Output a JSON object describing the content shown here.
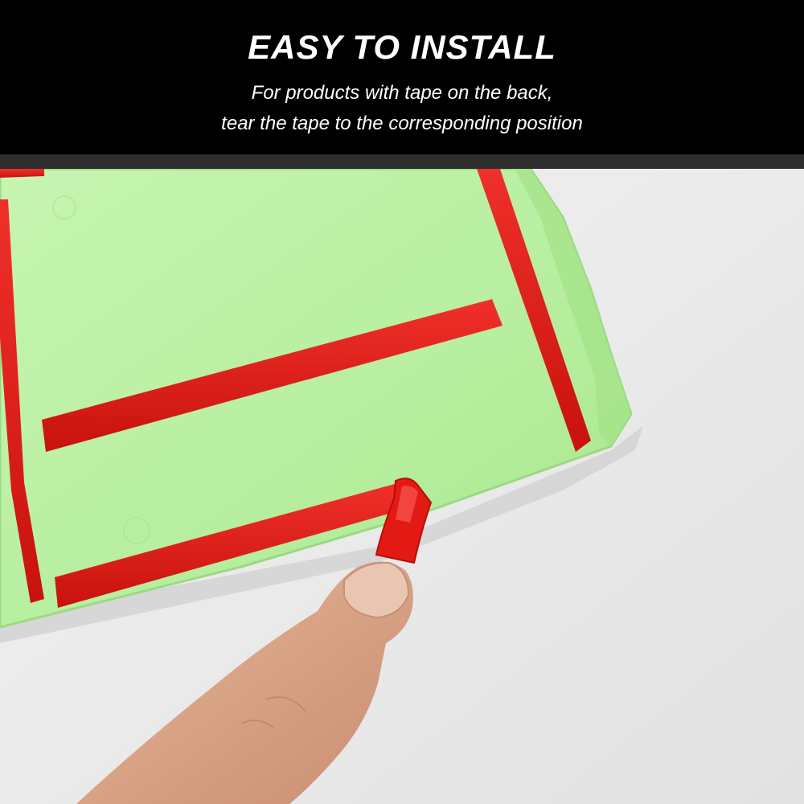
{
  "banner": {
    "title": "EASY TO INSTALL",
    "subtitle_line1": "For products with tape on the back,",
    "subtitle_line2": "tear the tape to the corresponding position"
  },
  "photo": {
    "subject": "green-pad-with-red-adhesive-tape",
    "colors": {
      "pad": "#b7f0a2",
      "tape": "#e11b14",
      "background": "#ececec",
      "skin": "#d9a88a"
    }
  }
}
